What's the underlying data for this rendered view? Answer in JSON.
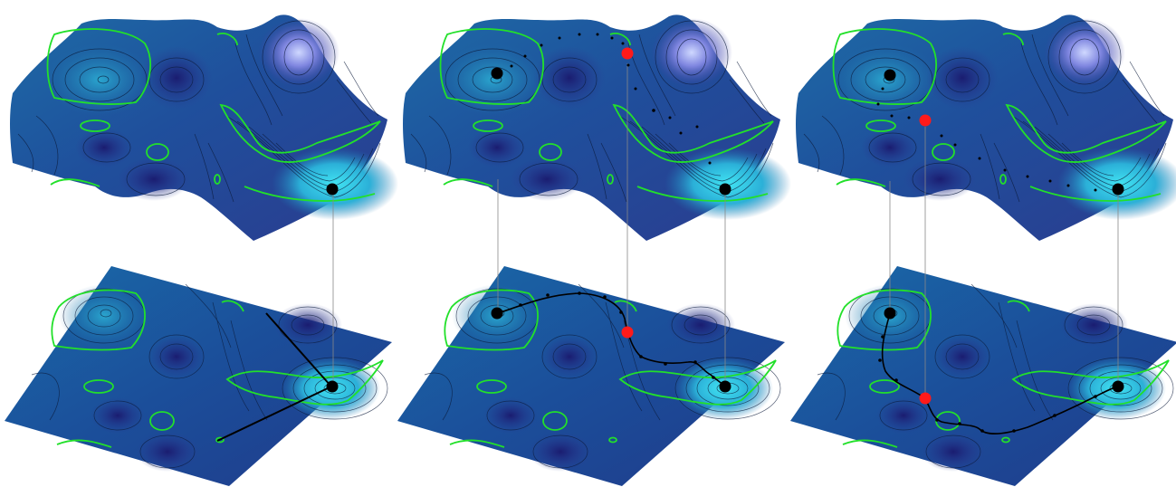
{
  "figure": {
    "panel_count": 3,
    "panels": [
      {
        "id": "panel-1",
        "markers": [
          "black-minimum"
        ],
        "path": "straight-descent"
      },
      {
        "id": "panel-2",
        "markers": [
          "black-minimum",
          "black-minimum",
          "red-saddle"
        ],
        "path": "curved-transition"
      },
      {
        "id": "panel-3",
        "markers": [
          "black-minimum",
          "black-minimum",
          "red-saddle"
        ],
        "path": "alternative-transition"
      }
    ]
  },
  "colors": {
    "background": "#ffffff",
    "surface_light": "#39d6ea",
    "surface_mid": "#1e78b0",
    "surface_dark": "#2a2d8a",
    "contour_highlight": "#22e02a",
    "contour_line": "#0b1a3a",
    "minimum_marker": "#000000",
    "saddle_marker": "#ff1a1a",
    "projection_line": "#888888"
  }
}
